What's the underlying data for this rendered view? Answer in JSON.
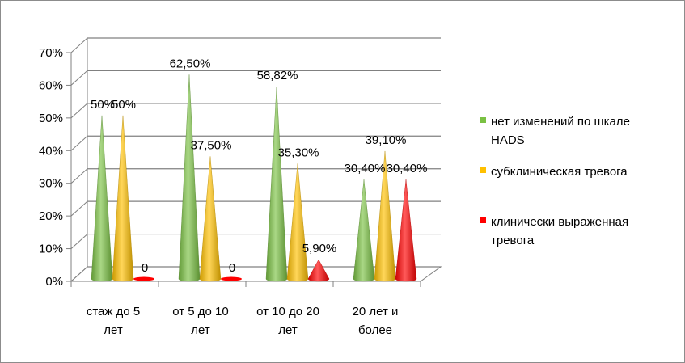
{
  "chart_data": {
    "type": "bar",
    "title": "",
    "xlabel": "",
    "ylabel": "",
    "ylim": [
      0,
      70
    ],
    "y_ticks": [
      "0%",
      "10%",
      "20%",
      "30%",
      "40%",
      "50%",
      "60%",
      "70%"
    ],
    "grid": true,
    "legend_position": "right",
    "categories": [
      [
        "стаж до 5",
        "лет"
      ],
      [
        "от 5 до 10",
        "лет"
      ],
      [
        "от 10 до 20",
        "лет"
      ],
      [
        "20 лет и",
        "более"
      ]
    ],
    "series": [
      {
        "name": "нет изменений  по шкале HADS",
        "legend_lines": [
          "нет изменений  по шкале",
          "HADS"
        ],
        "color": "#7ac143",
        "values": [
          50,
          62.5,
          58.82,
          30.4
        ],
        "labels": [
          "50%",
          "62,50%",
          "58,82%",
          "30,40%"
        ]
      },
      {
        "name": "субклиническая тревога",
        "legend_lines": [
          "субклиническая тревога"
        ],
        "color": "#ffc000",
        "values": [
          50,
          37.5,
          35.3,
          39.1
        ],
        "labels": [
          "50%",
          "37,50%",
          "35,30%",
          "39,10%"
        ]
      },
      {
        "name": "клинически выраженная тревога",
        "legend_lines": [
          "клинически выраженная",
          "тревога"
        ],
        "color": "#ff0000",
        "values": [
          0,
          0,
          5.9,
          30.4
        ],
        "labels": [
          "0",
          "0",
          "5,90%",
          "30,40%"
        ]
      }
    ]
  }
}
